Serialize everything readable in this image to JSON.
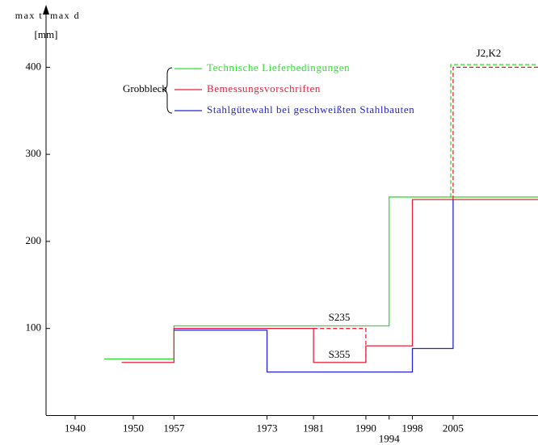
{
  "chart_data": {
    "type": "step",
    "y_label_left": "max t",
    "y_label_right": "max d",
    "y_unit": "[mm]",
    "legend_title": "Grobblech",
    "xlim": [
      1935,
      2019.6
    ],
    "ylim": [
      0,
      468
    ],
    "xticks": [
      1940,
      1950,
      1957,
      1973,
      1981,
      1990,
      1994,
      1998,
      2005
    ],
    "yticks": [
      100,
      200,
      300,
      400
    ],
    "series": [
      {
        "name": "Technische Lieferbedingungen",
        "color": "#33dd33",
        "x": [
          1945,
          1957,
          1994,
          2019.6
        ],
        "values": [
          65,
          103,
          251,
          251
        ]
      },
      {
        "name": "Bemessungsvorschriften",
        "color": "#e8203c",
        "x": [
          1948,
          1957,
          1981,
          1990,
          1998,
          2019.6
        ],
        "values": [
          61,
          100,
          61,
          80,
          248,
          248
        ]
      },
      {
        "name": "Stahlgütewahl bei geschweißten Stahlbauten",
        "color": "#2424d0",
        "x": [
          1957,
          1973,
          1998,
          2005
        ],
        "values": [
          98,
          50,
          77,
          248
        ]
      }
    ],
    "dashed": [
      {
        "color": "#33dd33",
        "x": [
          2004.6,
          2004.6,
          2019.6
        ],
        "values": [
          251,
          403,
          403
        ]
      },
      {
        "color": "#e8203c",
        "x": [
          1981,
          1990,
          1990
        ],
        "values": [
          100,
          100,
          61
        ]
      },
      {
        "color": "#e8203c",
        "x": [
          2005,
          2005,
          2019.6
        ],
        "values": [
          248,
          400,
          400
        ]
      }
    ],
    "annotations": [
      "S235",
      "S355",
      "J2,K2"
    ]
  }
}
